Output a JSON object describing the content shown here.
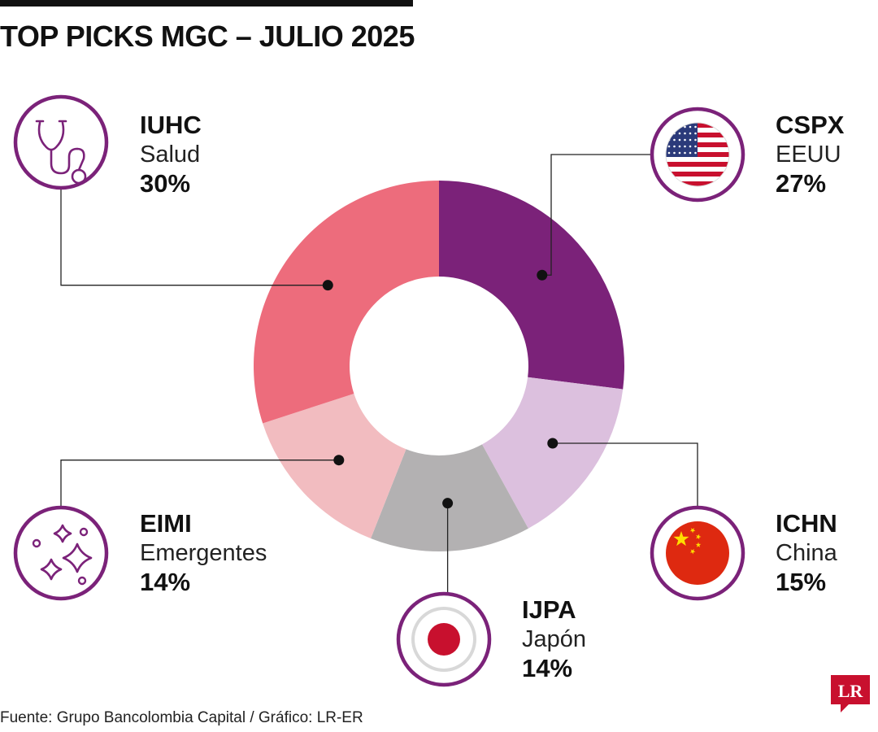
{
  "title": "TOP PICKS MGC – JULIO 2025",
  "source": "Fuente: Grupo Bancolombia Capital / Gráfico: LR-ER",
  "logo_text": "LR",
  "colors": {
    "accent": "#7b2279",
    "CSPX": "#7b2279",
    "ICHN": "#dcc0de",
    "IJPA": "#b3b1b2",
    "EIMI": "#f2bcc0",
    "IUHC": "#ed6c7c"
  },
  "chart_data": {
    "type": "pie",
    "variant": "donut",
    "title": "TOP PICKS MGC – JULIO 2025",
    "slices": [
      {
        "code": "CSPX",
        "label": "EEUU",
        "value": 27,
        "value_label": "27%",
        "icon": "usa-flag-icon"
      },
      {
        "code": "ICHN",
        "label": "China",
        "value": 15,
        "value_label": "15%",
        "icon": "china-flag-icon"
      },
      {
        "code": "IJPA",
        "label": "Japón",
        "value": 14,
        "value_label": "14%",
        "icon": "japan-flag-icon"
      },
      {
        "code": "EIMI",
        "label": "Emergentes",
        "value": 14,
        "value_label": "14%",
        "icon": "sparkles-icon"
      },
      {
        "code": "IUHC",
        "label": "Salud",
        "value": 30,
        "value_label": "30%",
        "icon": "stethoscope-icon"
      }
    ]
  }
}
